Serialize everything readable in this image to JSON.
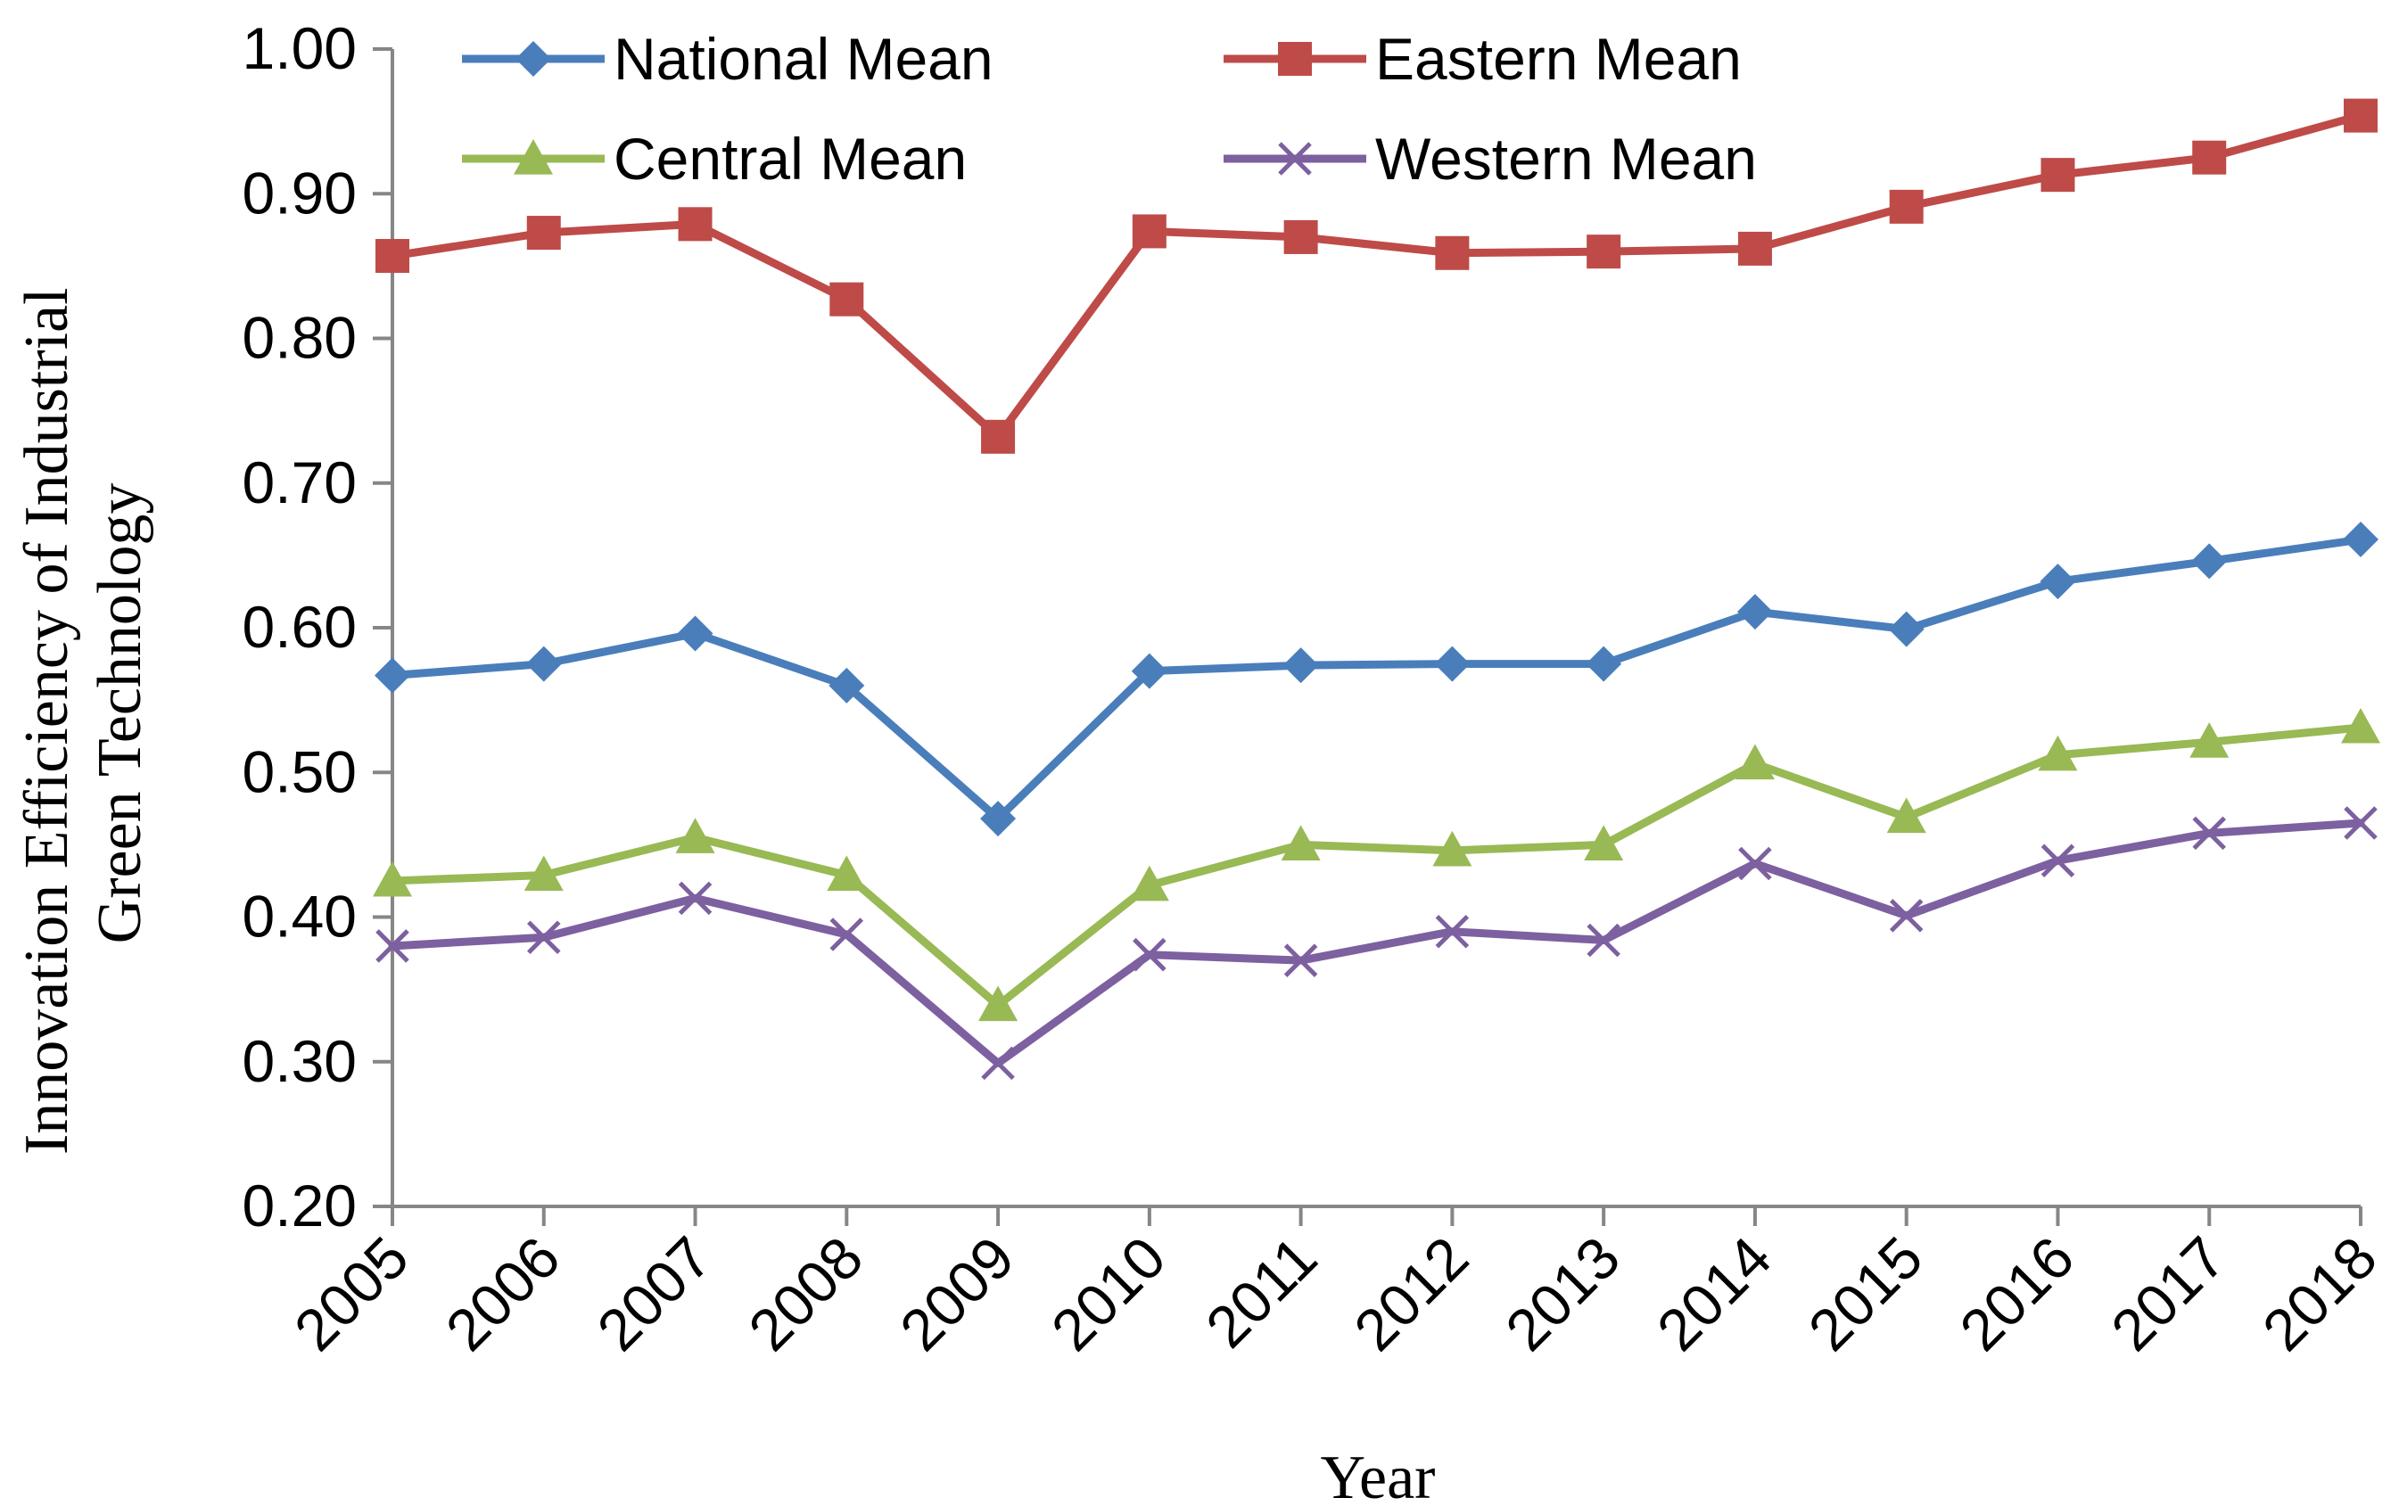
{
  "chart_data": {
    "type": "line",
    "title": "",
    "xlabel": "Year",
    "ylabel_lines": [
      "Innovation Efficiency of Industrial",
      "Green Technology"
    ],
    "ylim": [
      0.2,
      1.0
    ],
    "y_ticks": [
      "0.20",
      "0.30",
      "0.40",
      "0.50",
      "0.60",
      "0.70",
      "0.80",
      "0.90",
      "1.00"
    ],
    "categories": [
      "2005",
      "2006",
      "2007",
      "2008",
      "2009",
      "2010",
      "2011",
      "2012",
      "2013",
      "2014",
      "2015",
      "2016",
      "2017",
      "2018"
    ],
    "grid": false,
    "legend_position": "top",
    "series": [
      {
        "name": "National Mean",
        "color": "#4a7ebb",
        "marker": "diamond",
        "values": [
          0.567,
          0.575,
          0.596,
          0.56,
          0.468,
          0.57,
          0.574,
          0.575,
          0.575,
          0.611,
          0.599,
          0.632,
          0.646,
          0.661
        ]
      },
      {
        "name": "Eastern Mean",
        "color": "#be4b48",
        "marker": "square",
        "values": [
          0.857,
          0.873,
          0.879,
          0.827,
          0.732,
          0.874,
          0.87,
          0.859,
          0.86,
          0.862,
          0.891,
          0.913,
          0.925,
          0.954
        ]
      },
      {
        "name": "Central Mean",
        "color": "#98b954",
        "marker": "triangle",
        "values": [
          0.425,
          0.429,
          0.455,
          0.429,
          0.339,
          0.422,
          0.45,
          0.446,
          0.45,
          0.506,
          0.469,
          0.512,
          0.521,
          0.531
        ]
      },
      {
        "name": "Western Mean",
        "color": "#7d60a0",
        "marker": "x",
        "values": [
          0.38,
          0.386,
          0.413,
          0.388,
          0.299,
          0.374,
          0.37,
          0.39,
          0.384,
          0.437,
          0.401,
          0.439,
          0.458,
          0.465
        ]
      }
    ]
  }
}
